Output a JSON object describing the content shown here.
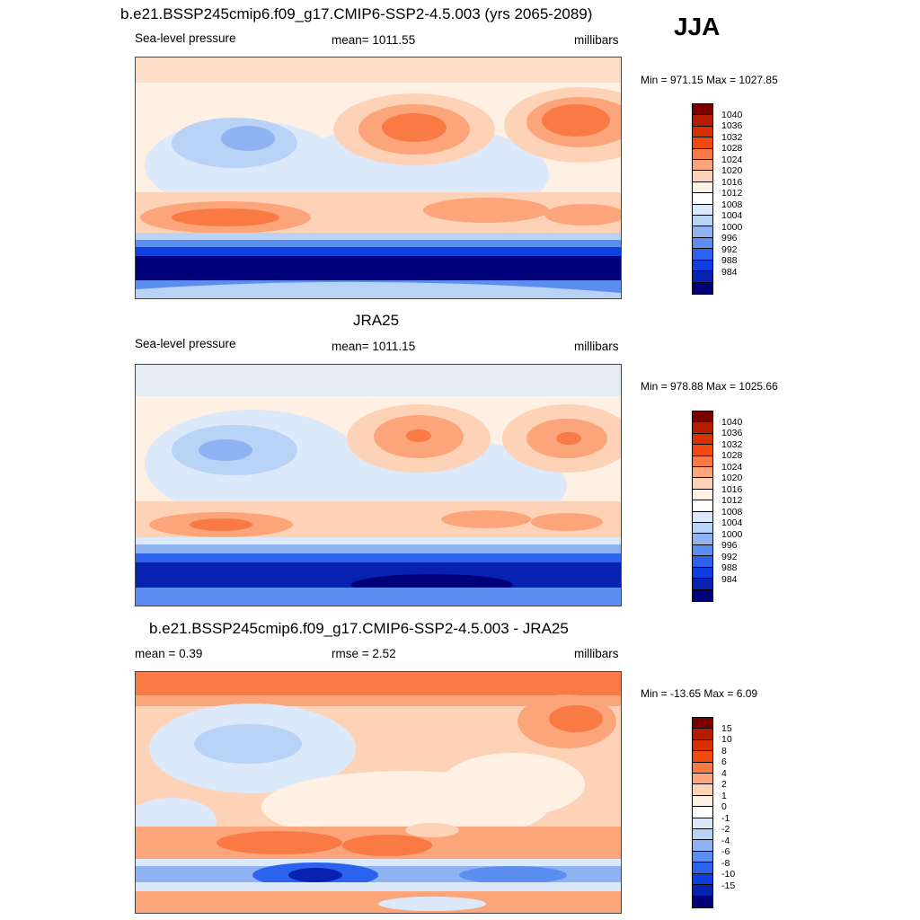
{
  "header": {
    "title": "b.e21.BSSP245cmip6.f09_g17.CMIP6-SSP2-4.5.003 (yrs 2065-2089)",
    "season": "JJA"
  },
  "panels": [
    {
      "id": "model",
      "title": "",
      "left": "Sea-level pressure",
      "center": "mean= 1011.55",
      "right": "millibars",
      "minmax": "Min = 971.15 Max = 1027.85",
      "colorbar": {
        "labels": [
          "1040",
          "1036",
          "1032",
          "1028",
          "1024",
          "1020",
          "1016",
          "1012",
          "1008",
          "1004",
          "1000",
          "996",
          "992",
          "988",
          "984"
        ],
        "colors": [
          "#7a0000",
          "#b51c00",
          "#d93000",
          "#f04a10",
          "#f97a45",
          "#fca57a",
          "#fdd2b6",
          "#fff0e4",
          "#ffffff",
          "#dce9fb",
          "#b9d3f7",
          "#8fb3f2",
          "#5b8ef0",
          "#2b63ee",
          "#0f3fe0",
          "#0722b0",
          "#00007a"
        ]
      }
    },
    {
      "id": "obs",
      "title": "JRA25",
      "left": "Sea-level pressure",
      "center": "mean= 1011.15",
      "right": "millibars",
      "minmax": "Min = 978.88 Max = 1025.66",
      "colorbar": {
        "labels": [
          "1040",
          "1036",
          "1032",
          "1028",
          "1024",
          "1020",
          "1016",
          "1012",
          "1008",
          "1004",
          "1000",
          "996",
          "992",
          "988",
          "984"
        ],
        "colors": [
          "#7a0000",
          "#b51c00",
          "#d93000",
          "#f04a10",
          "#f97a45",
          "#fca57a",
          "#fdd2b6",
          "#fff0e4",
          "#ffffff",
          "#dce9fb",
          "#b9d3f7",
          "#8fb3f2",
          "#5b8ef0",
          "#2b63ee",
          "#0f3fe0",
          "#0722b0",
          "#00007a"
        ]
      }
    },
    {
      "id": "diff",
      "title": "b.e21.BSSP245cmip6.f09_g17.CMIP6-SSP2-4.5.003 - JRA25",
      "left": "mean =   0.39",
      "center": "rmse =   2.52",
      "right": "millibars",
      "minmax": "Min = -13.65 Max =   6.09",
      "colorbar": {
        "labels": [
          "15",
          "10",
          "8",
          "6",
          "4",
          "2",
          "1",
          "0",
          "-1",
          "-2",
          "-4",
          "-6",
          "-8",
          "-10",
          "-15"
        ],
        "colors": [
          "#7a0000",
          "#b51c00",
          "#d93000",
          "#f04a10",
          "#f97a45",
          "#fca57a",
          "#fdd2b6",
          "#fff0e4",
          "#ffffff",
          "#dce9fb",
          "#b9d3f7",
          "#8fb3f2",
          "#5b8ef0",
          "#2b63ee",
          "#0f3fe0",
          "#0722b0",
          "#00007a"
        ]
      }
    }
  ]
}
